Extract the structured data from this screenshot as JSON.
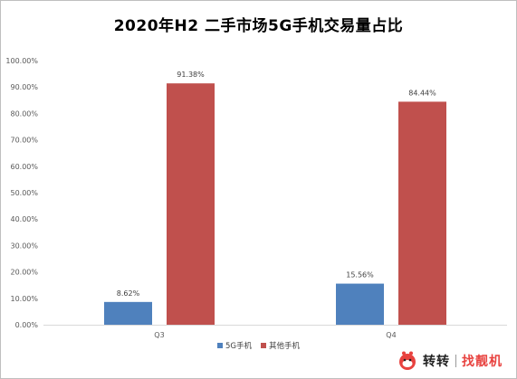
{
  "chart_data": {
    "type": "bar",
    "title": "2020年H2 二手市场5G手机交易量占比",
    "categories": [
      "Q3",
      "Q4"
    ],
    "series": [
      {
        "name": "5G手机",
        "values": [
          8.62,
          15.56
        ],
        "labels": [
          "8.62%",
          "15.56%"
        ],
        "color": "#4f81bd"
      },
      {
        "name": "其他手机",
        "values": [
          91.38,
          84.44
        ],
        "labels": [
          "91.38%",
          "84.44%"
        ],
        "color": "#c0504d"
      }
    ],
    "ylim": [
      0,
      100
    ],
    "yticks": [
      "0.00%",
      "10.00%",
      "20.00%",
      "30.00%",
      "40.00%",
      "50.00%",
      "60.00%",
      "70.00%",
      "80.00%",
      "90.00%",
      "100.00%"
    ],
    "xlabel": "",
    "ylabel": "",
    "grid": false,
    "legend": "bottom"
  },
  "watermark": {
    "brand1": "转转",
    "brand2": "找靓机"
  }
}
